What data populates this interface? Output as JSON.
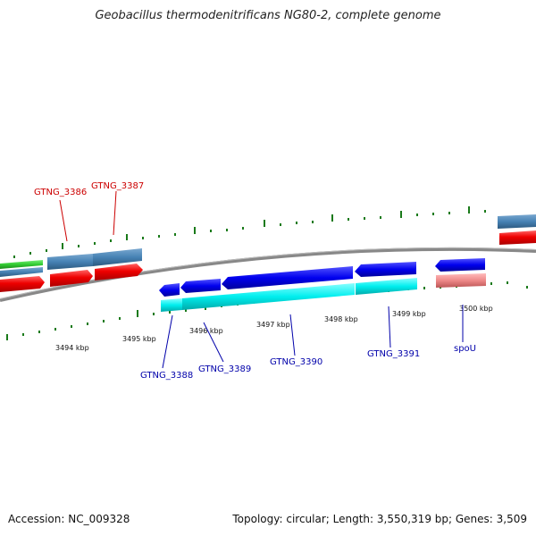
{
  "title": "Geobacillus thermodenitrificans NG80-2, complete genome",
  "footer": {
    "accession": "Accession: NC_009328",
    "summary": "Topology: circular; Length: 3,550,319 bp; Genes: 3,509"
  },
  "scale": {
    "unit_labels": [
      "3494 kbp",
      "3495 kbp",
      "3496 kbp",
      "3497 kbp",
      "3498 kbp",
      "3499 kbp",
      "3500 kbp"
    ]
  },
  "genes": {
    "top": [
      {
        "name": "GTNG_3386",
        "color": "#cc0000"
      },
      {
        "name": "GTNG_3387",
        "color": "#cc0000"
      }
    ],
    "bottom": [
      {
        "name": "GTNG_3388",
        "color": "#0000aa"
      },
      {
        "name": "GTNG_3389",
        "color": "#0000aa"
      },
      {
        "name": "GTNG_3390",
        "color": "#0000aa"
      },
      {
        "name": "GTNG_3391",
        "color": "#0000aa"
      },
      {
        "name": "spoU",
        "color": "#0000aa"
      }
    ]
  },
  "colors": {
    "backbone": "#888888",
    "tick": "#1a7a1a",
    "cds_red": "#ee0000",
    "cds_steelblue": "#4682b4",
    "cds_green": "#33cc33",
    "cds_blue": "#0000ee",
    "cds_cyan": "#00eeee",
    "cds_pink": "#ee8888"
  }
}
